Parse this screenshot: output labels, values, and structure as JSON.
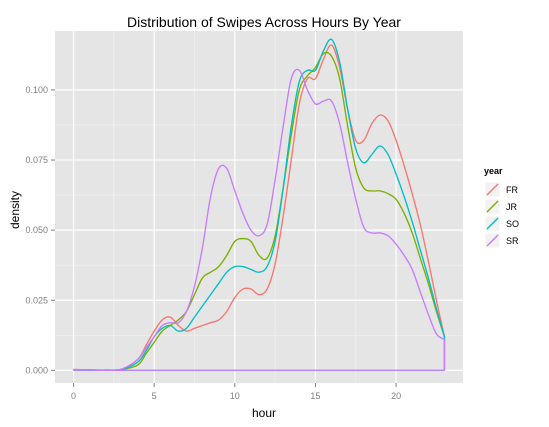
{
  "chart_data": {
    "type": "line",
    "title": "Distribution of Swipes Across Hours By Year",
    "xlabel": "hour",
    "ylabel": "density",
    "xlim": [
      -1.15,
      24.15
    ],
    "ylim": [
      -0.0045,
      0.121
    ],
    "x_ticks": [
      0,
      5,
      10,
      15,
      20
    ],
    "x_tick_labels": [
      "0",
      "5",
      "10",
      "15",
      "20"
    ],
    "y_ticks": [
      0,
      0.025,
      0.05,
      0.075,
      0.1
    ],
    "y_tick_labels": [
      "0.000",
      "0.025",
      "0.050",
      "0.075",
      "0.100"
    ],
    "grid": true,
    "legend": {
      "title": "year",
      "position": "right"
    },
    "series": [
      {
        "name": "FR",
        "color": "#F8766D",
        "points": [
          [
            0,
            0.0003
          ],
          [
            1,
            0.0002
          ],
          [
            2,
            0.0001
          ],
          [
            3,
            0.0005
          ],
          [
            4,
            0.004
          ],
          [
            4.5,
            0.009
          ],
          [
            5,
            0.014
          ],
          [
            5.5,
            0.018
          ],
          [
            6,
            0.019
          ],
          [
            6.5,
            0.016
          ],
          [
            7,
            0.014
          ],
          [
            7.5,
            0.015
          ],
          [
            8,
            0.016
          ],
          [
            8.5,
            0.017
          ],
          [
            9,
            0.018
          ],
          [
            9.5,
            0.021
          ],
          [
            10,
            0.026
          ],
          [
            10.5,
            0.029
          ],
          [
            11,
            0.029
          ],
          [
            11.5,
            0.027
          ],
          [
            12,
            0.029
          ],
          [
            12.5,
            0.038
          ],
          [
            13,
            0.055
          ],
          [
            13.5,
            0.075
          ],
          [
            14,
            0.095
          ],
          [
            14.5,
            0.104
          ],
          [
            15,
            0.104
          ],
          [
            15.5,
            0.111
          ],
          [
            16,
            0.116
          ],
          [
            16.5,
            0.108
          ],
          [
            17,
            0.093
          ],
          [
            17.5,
            0.082
          ],
          [
            18,
            0.082
          ],
          [
            18.5,
            0.088
          ],
          [
            19,
            0.091
          ],
          [
            19.5,
            0.089
          ],
          [
            20,
            0.082
          ],
          [
            20.5,
            0.073
          ],
          [
            21,
            0.063
          ],
          [
            21.5,
            0.052
          ],
          [
            22,
            0.039
          ],
          [
            22.5,
            0.025
          ],
          [
            23,
            0.012
          ]
        ]
      },
      {
        "name": "JR",
        "color": "#7CAE00",
        "points": [
          [
            0,
            0.0002
          ],
          [
            1,
            0.0001
          ],
          [
            2,
            0.0001
          ],
          [
            3,
            0.0003
          ],
          [
            4,
            0.002
          ],
          [
            4.5,
            0.006
          ],
          [
            5,
            0.01
          ],
          [
            5.5,
            0.014
          ],
          [
            6,
            0.016
          ],
          [
            6.5,
            0.018
          ],
          [
            7,
            0.021
          ],
          [
            7.5,
            0.027
          ],
          [
            8,
            0.033
          ],
          [
            8.5,
            0.035
          ],
          [
            9,
            0.037
          ],
          [
            9.5,
            0.041
          ],
          [
            10,
            0.046
          ],
          [
            10.5,
            0.047
          ],
          [
            11,
            0.046
          ],
          [
            11.5,
            0.041
          ],
          [
            12,
            0.04
          ],
          [
            12.5,
            0.048
          ],
          [
            13,
            0.065
          ],
          [
            13.5,
            0.084
          ],
          [
            14,
            0.1
          ],
          [
            14.5,
            0.105
          ],
          [
            15,
            0.108
          ],
          [
            15.5,
            0.113
          ],
          [
            16,
            0.112
          ],
          [
            16.5,
            0.104
          ],
          [
            17,
            0.087
          ],
          [
            17.5,
            0.072
          ],
          [
            18,
            0.065
          ],
          [
            18.5,
            0.064
          ],
          [
            19,
            0.064
          ],
          [
            19.5,
            0.063
          ],
          [
            20,
            0.061
          ],
          [
            20.5,
            0.056
          ],
          [
            21,
            0.049
          ],
          [
            21.5,
            0.04
          ],
          [
            22,
            0.031
          ],
          [
            22.5,
            0.021
          ],
          [
            23,
            0.012
          ]
        ]
      },
      {
        "name": "SO",
        "color": "#00BFC4",
        "points": [
          [
            0,
            0.0002
          ],
          [
            1,
            0.0001
          ],
          [
            2,
            0.0001
          ],
          [
            3,
            0.0004
          ],
          [
            4,
            0.003
          ],
          [
            4.5,
            0.007
          ],
          [
            5,
            0.012
          ],
          [
            5.5,
            0.015
          ],
          [
            6,
            0.016
          ],
          [
            6.5,
            0.014
          ],
          [
            7,
            0.015
          ],
          [
            7.5,
            0.019
          ],
          [
            8,
            0.023
          ],
          [
            8.5,
            0.027
          ],
          [
            9,
            0.031
          ],
          [
            9.5,
            0.035
          ],
          [
            10,
            0.037
          ],
          [
            10.5,
            0.037
          ],
          [
            11,
            0.036
          ],
          [
            11.5,
            0.035
          ],
          [
            12,
            0.037
          ],
          [
            12.5,
            0.046
          ],
          [
            13,
            0.065
          ],
          [
            13.5,
            0.087
          ],
          [
            14,
            0.103
          ],
          [
            14.5,
            0.107
          ],
          [
            15,
            0.107
          ],
          [
            15.5,
            0.114
          ],
          [
            16,
            0.118
          ],
          [
            16.5,
            0.11
          ],
          [
            17,
            0.093
          ],
          [
            17.5,
            0.079
          ],
          [
            18,
            0.074
          ],
          [
            18.5,
            0.077
          ],
          [
            19,
            0.08
          ],
          [
            19.5,
            0.077
          ],
          [
            20,
            0.07
          ],
          [
            20.5,
            0.062
          ],
          [
            21,
            0.053
          ],
          [
            21.5,
            0.043
          ],
          [
            22,
            0.033
          ],
          [
            22.5,
            0.022
          ],
          [
            23,
            0.012
          ]
        ]
      },
      {
        "name": "SR",
        "color": "#C77CFF",
        "points": [
          [
            0,
            0.0003
          ],
          [
            1,
            0.0002
          ],
          [
            2,
            0.0001
          ],
          [
            3,
            0.0005
          ],
          [
            4,
            0.004
          ],
          [
            4.5,
            0.008
          ],
          [
            5,
            0.012
          ],
          [
            5.5,
            0.016
          ],
          [
            6,
            0.017
          ],
          [
            6.5,
            0.017
          ],
          [
            7,
            0.021
          ],
          [
            7.5,
            0.03
          ],
          [
            8,
            0.044
          ],
          [
            8.5,
            0.062
          ],
          [
            9,
            0.072
          ],
          [
            9.5,
            0.072
          ],
          [
            10,
            0.064
          ],
          [
            10.5,
            0.056
          ],
          [
            11,
            0.05
          ],
          [
            11.5,
            0.048
          ],
          [
            12,
            0.052
          ],
          [
            12.5,
            0.068
          ],
          [
            13,
            0.087
          ],
          [
            13.5,
            0.104
          ],
          [
            14,
            0.107
          ],
          [
            14.5,
            0.1
          ],
          [
            15,
            0.095
          ],
          [
            15.5,
            0.096
          ],
          [
            16,
            0.096
          ],
          [
            16.5,
            0.088
          ],
          [
            17,
            0.074
          ],
          [
            17.5,
            0.061
          ],
          [
            18,
            0.051
          ],
          [
            18.5,
            0.049
          ],
          [
            19,
            0.049
          ],
          [
            19.5,
            0.048
          ],
          [
            20,
            0.045
          ],
          [
            20.5,
            0.041
          ],
          [
            21,
            0.036
          ],
          [
            21.5,
            0.028
          ],
          [
            22,
            0.02
          ],
          [
            22.5,
            0.013
          ],
          [
            23,
            0.011
          ]
        ]
      }
    ]
  }
}
